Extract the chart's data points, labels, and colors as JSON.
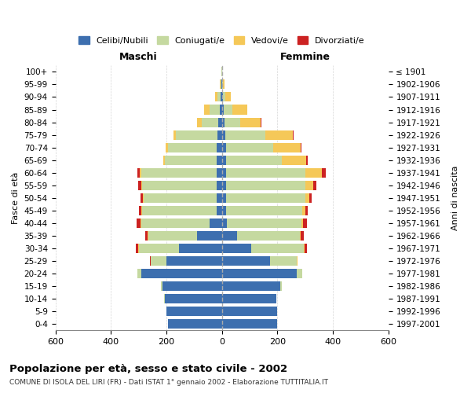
{
  "age_groups": [
    "0-4",
    "5-9",
    "10-14",
    "15-19",
    "20-24",
    "25-29",
    "30-34",
    "35-39",
    "40-44",
    "45-49",
    "50-54",
    "55-59",
    "60-64",
    "65-69",
    "70-74",
    "75-79",
    "80-84",
    "85-89",
    "90-94",
    "95-99",
    "100+"
  ],
  "birth_years": [
    "1997-2001",
    "1992-1996",
    "1987-1991",
    "1982-1986",
    "1977-1981",
    "1972-1976",
    "1967-1971",
    "1962-1966",
    "1957-1961",
    "1952-1956",
    "1947-1951",
    "1942-1946",
    "1937-1941",
    "1932-1936",
    "1927-1931",
    "1922-1926",
    "1917-1921",
    "1912-1916",
    "1907-1911",
    "1902-1906",
    "≤ 1901"
  ],
  "maschi": {
    "celibi": [
      195,
      200,
      205,
      215,
      290,
      200,
      155,
      90,
      45,
      18,
      18,
      18,
      20,
      20,
      20,
      15,
      12,
      8,
      5,
      2,
      0
    ],
    "coniugati": [
      0,
      0,
      2,
      4,
      15,
      55,
      145,
      175,
      245,
      270,
      265,
      270,
      270,
      185,
      175,
      150,
      60,
      35,
      10,
      3,
      1
    ],
    "vedovi": [
      0,
      0,
      0,
      0,
      0,
      1,
      1,
      2,
      2,
      3,
      3,
      3,
      5,
      5,
      8,
      8,
      18,
      20,
      8,
      2,
      0
    ],
    "divorziati": [
      0,
      0,
      0,
      0,
      0,
      2,
      8,
      10,
      14,
      8,
      8,
      10,
      8,
      2,
      0,
      0,
      0,
      0,
      0,
      0,
      0
    ]
  },
  "femmine": {
    "nubili": [
      200,
      200,
      195,
      210,
      270,
      175,
      105,
      55,
      18,
      15,
      15,
      15,
      15,
      15,
      15,
      12,
      10,
      8,
      3,
      2,
      0
    ],
    "coniugate": [
      0,
      0,
      2,
      5,
      20,
      95,
      190,
      225,
      270,
      275,
      285,
      285,
      285,
      200,
      170,
      145,
      55,
      30,
      10,
      3,
      1
    ],
    "vedove": [
      0,
      0,
      0,
      0,
      0,
      2,
      3,
      3,
      5,
      10,
      15,
      30,
      60,
      90,
      100,
      100,
      75,
      55,
      20,
      5,
      0
    ],
    "divorziate": [
      0,
      0,
      0,
      0,
      0,
      2,
      8,
      12,
      15,
      10,
      10,
      10,
      15,
      5,
      2,
      2,
      2,
      0,
      0,
      0,
      0
    ]
  },
  "colors": {
    "celibi": "#3d6faf",
    "coniugati": "#c5d9a0",
    "vedovi": "#f5c858",
    "divorziati": "#cc2222"
  },
  "xlim": 600,
  "title": "Popolazione per età, sesso e stato civile - 2002",
  "subtitle": "COMUNE DI ISOLA DEL LIRI (FR) - Dati ISTAT 1° gennaio 2002 - Elaborazione TUTTITALIA.IT",
  "xlabel_left": "Maschi",
  "xlabel_right": "Femmine",
  "ylabel_left": "Fasce di età",
  "ylabel_right": "Anni di nascita"
}
